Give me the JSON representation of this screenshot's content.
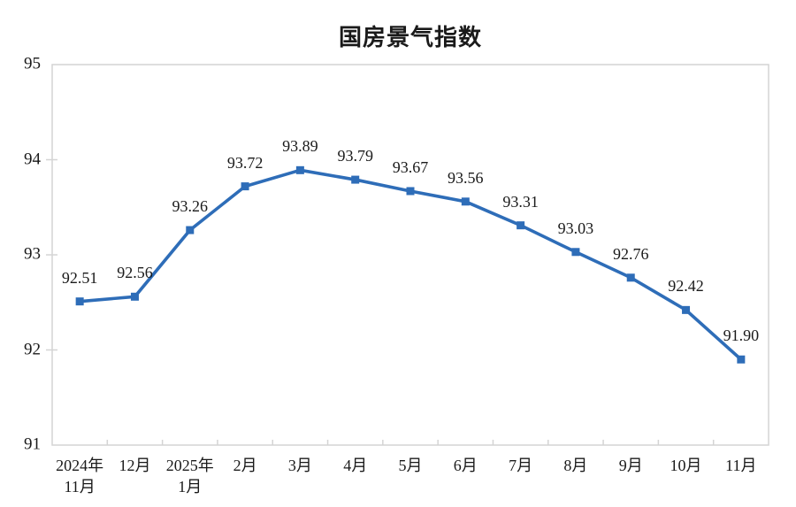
{
  "chart_data": {
    "type": "line",
    "title": "国房景气指数",
    "categories": [
      "2024年\n11月",
      "12月",
      "2025年\n1月",
      "2月",
      "3月",
      "4月",
      "5月",
      "6月",
      "7月",
      "8月",
      "9月",
      "10月",
      "11月"
    ],
    "values": [
      92.51,
      92.56,
      93.26,
      93.72,
      93.89,
      93.79,
      93.67,
      93.56,
      93.31,
      93.03,
      92.76,
      92.42,
      91.9
    ],
    "data_labels": [
      "92.51",
      "92.56",
      "93.26",
      "93.72",
      "93.89",
      "93.79",
      "93.67",
      "93.56",
      "93.31",
      "93.03",
      "92.76",
      "92.42",
      "91.90"
    ],
    "ylim": [
      91,
      95
    ],
    "yticks": [
      "91",
      "92",
      "93",
      "94",
      "95"
    ],
    "xlabel": "",
    "ylabel": "",
    "grid": false,
    "legend": "none",
    "line_color": "#2E6DB8",
    "marker": "square",
    "marker_color": "#2E6DB8",
    "frame_color": "#D4D4D4",
    "text_color": "#1a1a1a"
  }
}
